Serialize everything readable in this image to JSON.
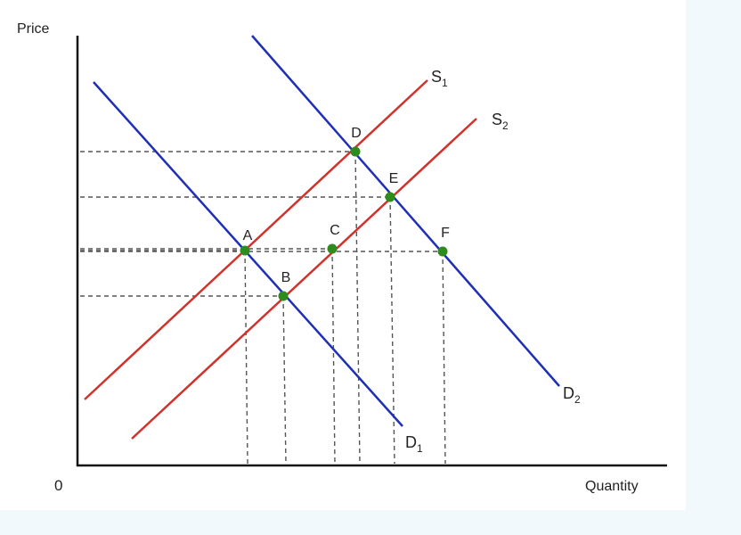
{
  "chart_data": {
    "type": "diagram",
    "ylabel": "Price",
    "xlabel": "Quantity",
    "origin_label": "0",
    "curves": [
      {
        "name": "S",
        "sub": "1",
        "color": "#d0322c"
      },
      {
        "name": "S",
        "sub": "2",
        "color": "#d0322c"
      },
      {
        "name": "D",
        "sub": "1",
        "color": "#1f2fb8"
      },
      {
        "name": "D",
        "sub": "2",
        "color": "#1f2fb8"
      }
    ],
    "points": [
      {
        "label": "A",
        "on": [
          "S1",
          "D1"
        ]
      },
      {
        "label": "B",
        "on": [
          "S2",
          "D1"
        ]
      },
      {
        "label": "C",
        "on": [
          "S2"
        ]
      },
      {
        "label": "D",
        "on": [
          "S1",
          "D2"
        ]
      },
      {
        "label": "E",
        "on": [
          "S2",
          "D2"
        ]
      },
      {
        "label": "F",
        "on": [
          "D2"
        ]
      }
    ],
    "point_color": "#2e8b1e",
    "guide_lines": "dashed"
  }
}
